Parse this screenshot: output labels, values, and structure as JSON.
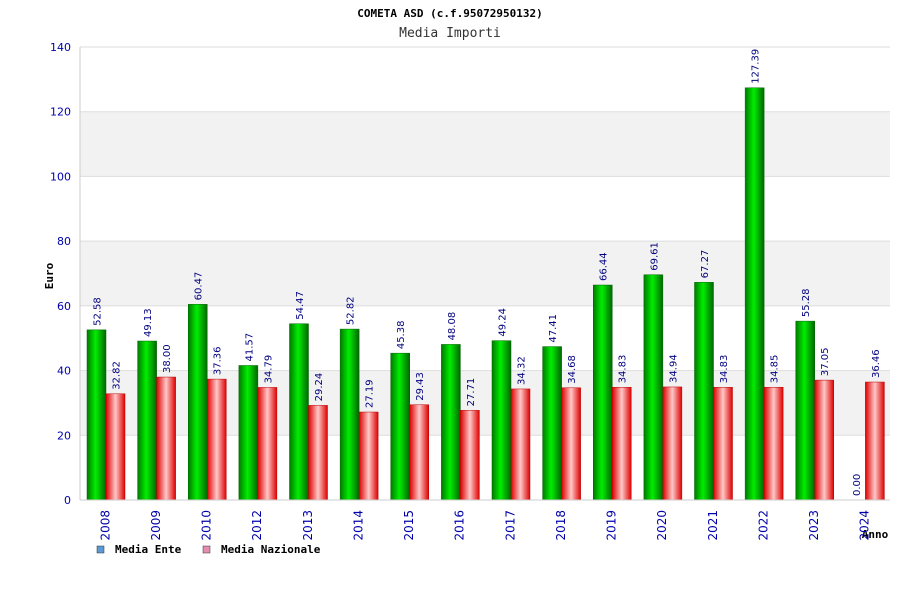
{
  "chart_data": {
    "type": "bar",
    "title": "COMETA ASD (c.f.95072950132)",
    "subtitle": "Media Importi",
    "xlabel": "Anno",
    "ylabel": "Euro",
    "ylim": [
      0,
      140
    ],
    "yticks": [
      "0",
      "20",
      "40",
      "60",
      "80",
      "100",
      "120",
      "140"
    ],
    "categories": [
      "2008",
      "2009",
      "2010",
      "2012",
      "2013",
      "2014",
      "2015",
      "2016",
      "2017",
      "2018",
      "2019",
      "2020",
      "2021",
      "2022",
      "2023",
      "2024"
    ],
    "series": [
      {
        "name": "Media Ente",
        "color": "#00aa00",
        "legend_color": "#5b9bd5",
        "values": [
          52.58,
          49.13,
          60.47,
          41.57,
          54.47,
          52.82,
          45.38,
          48.08,
          49.24,
          47.41,
          66.44,
          69.61,
          67.27,
          127.39,
          55.28,
          0.0
        ],
        "labels": [
          "52.58",
          "49.13",
          "60.47",
          "41.57",
          "54.47",
          "52.82",
          "45.38",
          "48.08",
          "49.24",
          "47.41",
          "66.44",
          "69.61",
          "67.27",
          "127.39",
          "55.28",
          "0.00"
        ]
      },
      {
        "name": "Media Nazionale",
        "color": "#ee1111",
        "legend_color": "#e88bb0",
        "values": [
          32.82,
          38.0,
          37.36,
          34.79,
          29.24,
          27.19,
          29.43,
          27.71,
          34.32,
          34.68,
          34.83,
          34.94,
          34.83,
          34.85,
          37.05,
          36.46
        ],
        "labels": [
          "32.82",
          "38.00",
          "37.36",
          "34.79",
          "29.24",
          "27.19",
          "29.43",
          "27.71",
          "34.32",
          "34.68",
          "34.83",
          "34.94",
          "34.83",
          "34.85",
          "37.05",
          "36.46"
        ]
      }
    ],
    "grid": true,
    "legend": "bottom-left"
  }
}
